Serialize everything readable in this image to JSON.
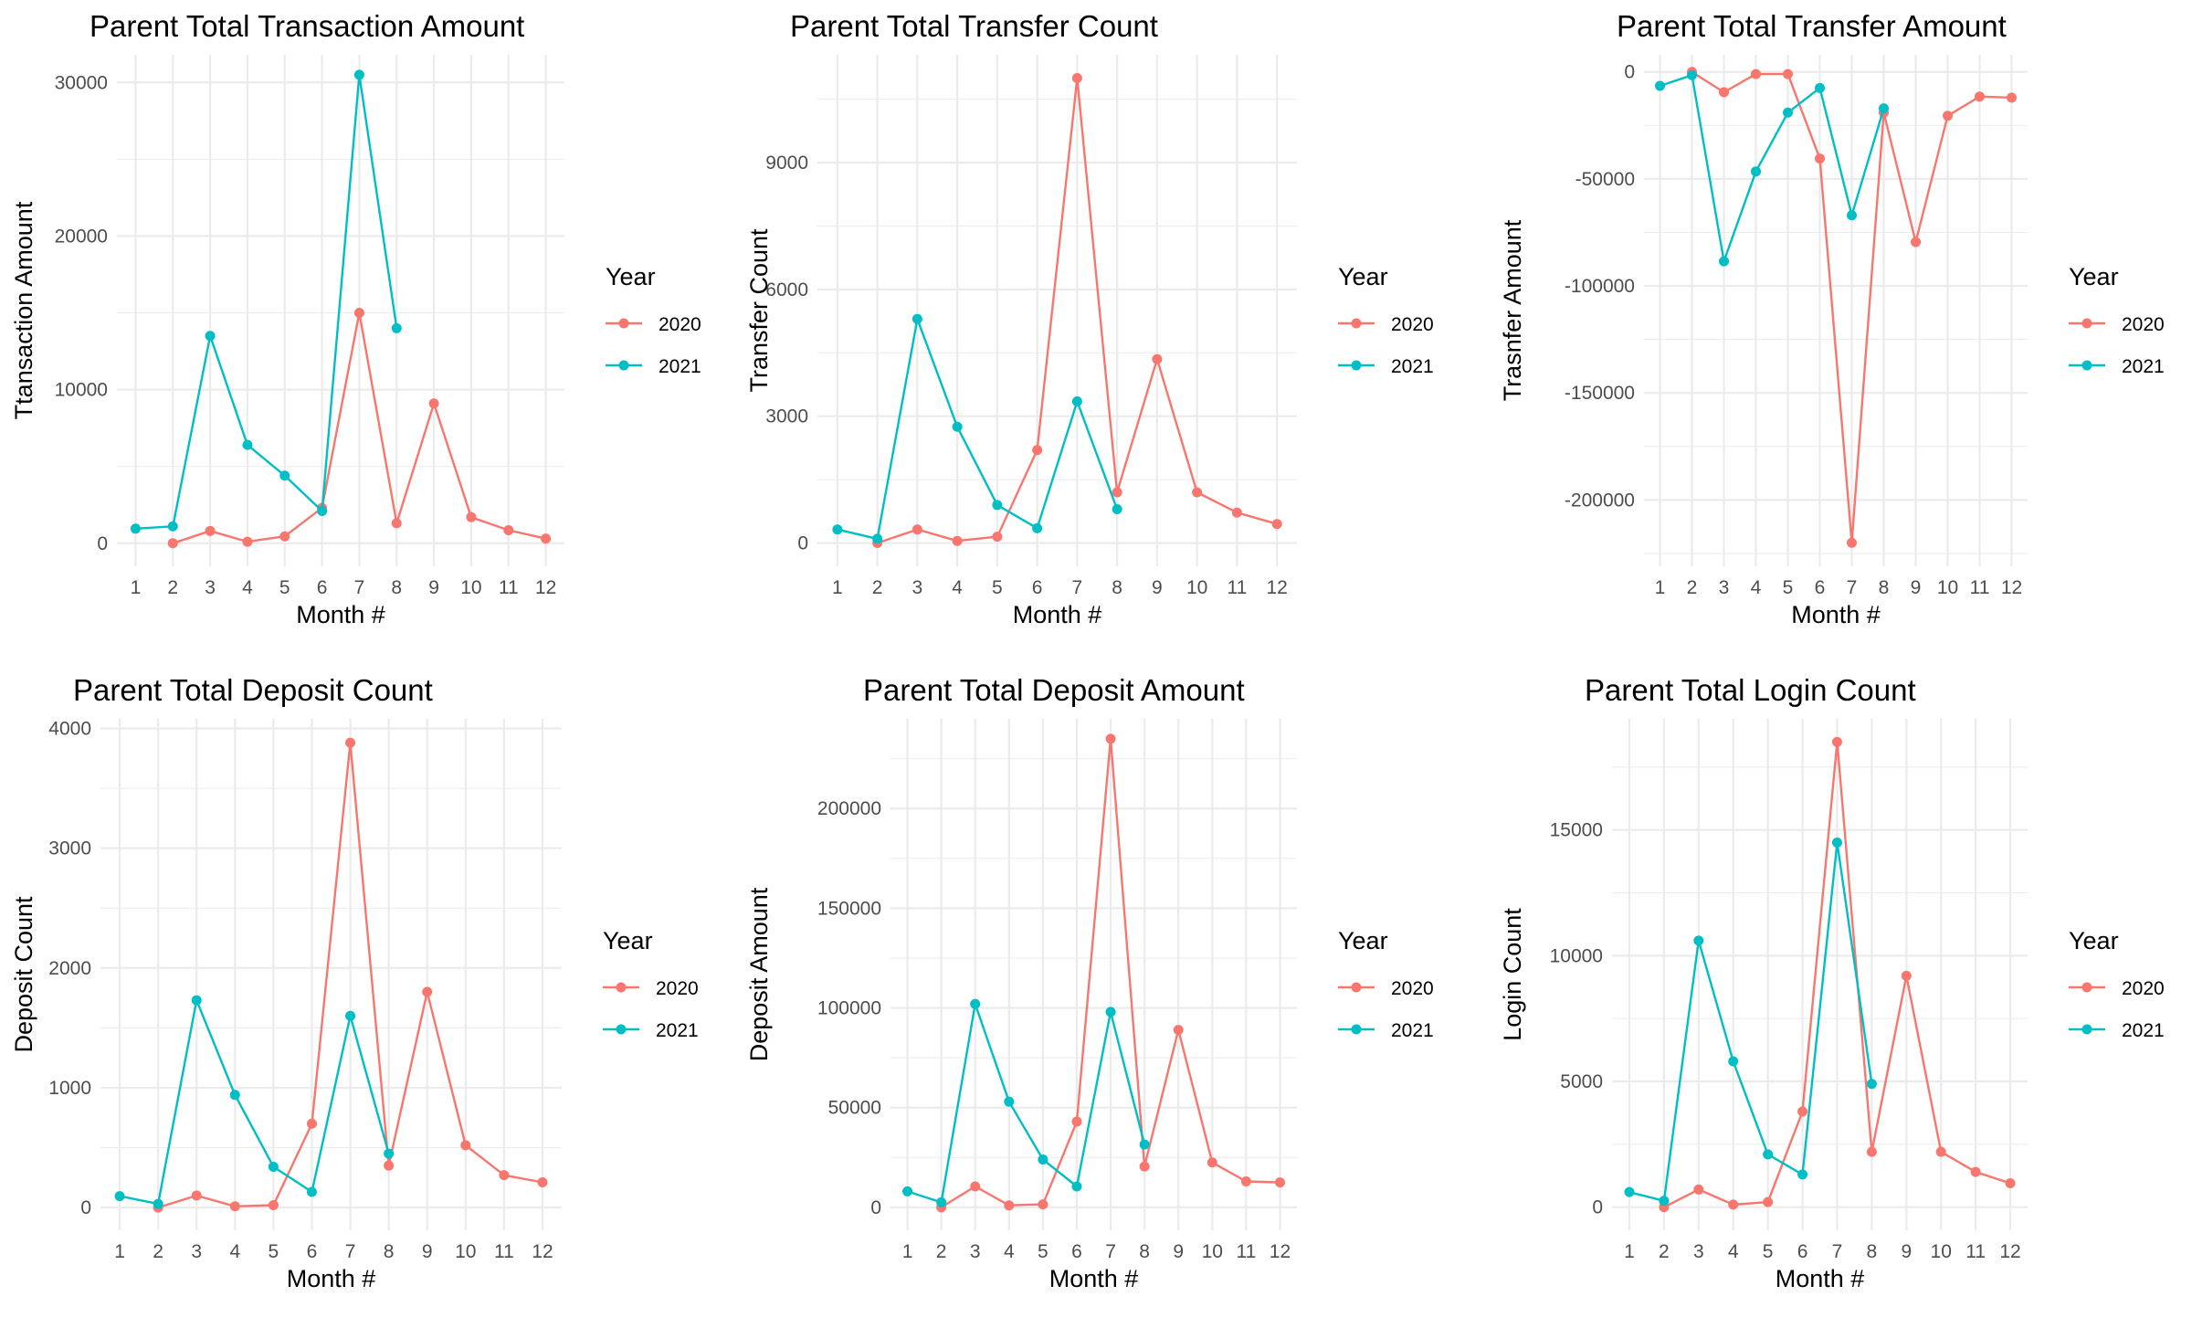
{
  "colors": {
    "y2020": "#F8766D",
    "y2021": "#00BFC4",
    "grid_major": "#EBEBEB",
    "tick_text": "#4D4D4D"
  },
  "chart_data": [
    {
      "type": "line",
      "title": "Parent Total Transaction Amount",
      "xlabel": "Month #",
      "ylabel": "Ttansaction Amount",
      "x": [
        1,
        2,
        3,
        4,
        5,
        6,
        7,
        8,
        9,
        10,
        11,
        12
      ],
      "xlim": [
        0.5,
        12.5
      ],
      "ylim": [
        -1500,
        31800
      ],
      "yticks": [
        0,
        10000,
        20000,
        30000
      ],
      "ytick_labels": [
        "0",
        "10000",
        "20000",
        "30000"
      ],
      "legend": {
        "title": "Year",
        "position": "right"
      },
      "series": [
        {
          "name": "2020",
          "color": "#F8766D",
          "x": [
            2,
            3,
            4,
            5,
            6,
            7,
            8,
            9,
            10,
            11,
            12
          ],
          "values": [
            0,
            800,
            100,
            450,
            2300,
            15000,
            1300,
            9100,
            1700,
            850,
            300
          ]
        },
        {
          "name": "2021",
          "color": "#00BFC4",
          "x": [
            1,
            2,
            3,
            4,
            5,
            6,
            7,
            8
          ],
          "values": [
            950,
            1100,
            13500,
            6400,
            4400,
            2100,
            30500,
            14000
          ]
        }
      ]
    },
    {
      "type": "line",
      "title": "Parent Total Transfer Count",
      "xlabel": "Month #",
      "ylabel": "Transfer Count",
      "x": [
        1,
        2,
        3,
        4,
        5,
        6,
        7,
        8,
        9,
        10,
        11,
        12
      ],
      "xlim": [
        0.5,
        12.5
      ],
      "ylim": [
        -550,
        11550
      ],
      "yticks": [
        0,
        3000,
        6000,
        9000
      ],
      "ytick_labels": [
        "0",
        "3000",
        "6000",
        "9000"
      ],
      "legend": {
        "title": "Year",
        "position": "right"
      },
      "series": [
        {
          "name": "2020",
          "color": "#F8766D",
          "x": [
            2,
            3,
            4,
            5,
            6,
            7,
            8,
            9,
            10,
            11,
            12
          ],
          "values": [
            0,
            320,
            50,
            150,
            2200,
            11000,
            1200,
            4350,
            1200,
            720,
            450
          ]
        },
        {
          "name": "2021",
          "color": "#00BFC4",
          "x": [
            1,
            2,
            3,
            4,
            5,
            6,
            7,
            8
          ],
          "values": [
            320,
            100,
            5300,
            2750,
            900,
            350,
            3350,
            800
          ]
        }
      ]
    },
    {
      "type": "line",
      "title": "Parent Total Transfer Amount",
      "xlabel": "Month #",
      "ylabel": "Trasnfer Amount",
      "x": [
        1,
        2,
        3,
        4,
        5,
        6,
        7,
        8,
        9,
        10,
        11,
        12
      ],
      "xlim": [
        0.5,
        12.5
      ],
      "ylim": [
        -231000,
        8000
      ],
      "yticks": [
        -200000,
        -150000,
        -100000,
        -50000,
        0
      ],
      "ytick_labels": [
        "-200000",
        "-150000",
        "-100000",
        "-50000",
        "0"
      ],
      "legend": {
        "title": "Year",
        "position": "right"
      },
      "series": [
        {
          "name": "2020",
          "color": "#F8766D",
          "x": [
            2,
            3,
            4,
            5,
            6,
            7,
            8,
            9,
            10,
            11,
            12
          ],
          "values": [
            0,
            -9500,
            -1000,
            -1000,
            -40500,
            -220000,
            -19000,
            -79500,
            -20500,
            -11500,
            -12000
          ]
        },
        {
          "name": "2021",
          "color": "#00BFC4",
          "x": [
            1,
            2,
            3,
            4,
            5,
            6,
            7,
            8
          ],
          "values": [
            -6500,
            -1500,
            -88500,
            -46500,
            -19000,
            -7500,
            -67000,
            -17000
          ]
        }
      ]
    },
    {
      "type": "line",
      "title": "Parent Total Deposit Count",
      "xlabel": "Month #",
      "ylabel": "Deposit Count",
      "x": [
        1,
        2,
        3,
        4,
        5,
        6,
        7,
        8,
        9,
        10,
        11,
        12
      ],
      "xlim": [
        0.5,
        12.5
      ],
      "ylim": [
        -190,
        4080
      ],
      "yticks": [
        0,
        1000,
        2000,
        3000,
        4000
      ],
      "ytick_labels": [
        "0",
        "1000",
        "2000",
        "3000",
        "4000"
      ],
      "legend": {
        "title": "Year",
        "position": "right"
      },
      "series": [
        {
          "name": "2020",
          "color": "#F8766D",
          "x": [
            2,
            3,
            4,
            5,
            6,
            7,
            8,
            9,
            10,
            11,
            12
          ],
          "values": [
            0,
            100,
            10,
            20,
            700,
            3880,
            350,
            1800,
            520,
            270,
            210
          ]
        },
        {
          "name": "2021",
          "color": "#00BFC4",
          "x": [
            1,
            2,
            3,
            4,
            5,
            6,
            7,
            8
          ],
          "values": [
            95,
            30,
            1730,
            940,
            340,
            130,
            1600,
            450
          ]
        }
      ]
    },
    {
      "type": "line",
      "title": "Parent Total Deposit Amount",
      "xlabel": "Month #",
      "ylabel": "Deposit Amount",
      "x": [
        1,
        2,
        3,
        4,
        5,
        6,
        7,
        8,
        9,
        10,
        11,
        12
      ],
      "xlim": [
        0.5,
        12.5
      ],
      "ylim": [
        -11500,
        245000
      ],
      "yticks": [
        0,
        50000,
        100000,
        150000,
        200000
      ],
      "ytick_labels": [
        "0",
        "50000",
        "100000",
        "150000",
        "200000"
      ],
      "legend": {
        "title": "Year",
        "position": "right"
      },
      "series": [
        {
          "name": "2020",
          "color": "#F8766D",
          "x": [
            2,
            3,
            4,
            5,
            6,
            7,
            8,
            9,
            10,
            11,
            12
          ],
          "values": [
            0,
            10500,
            1000,
            1500,
            43000,
            235000,
            20500,
            89000,
            22500,
            13000,
            12500
          ]
        },
        {
          "name": "2021",
          "color": "#00BFC4",
          "x": [
            1,
            2,
            3,
            4,
            5,
            6,
            7,
            8
          ],
          "values": [
            8000,
            2500,
            102000,
            53000,
            24000,
            10500,
            98000,
            31500
          ]
        }
      ]
    },
    {
      "type": "line",
      "title": "Parent Total Login Count",
      "xlabel": "Month #",
      "ylabel": "Login Count",
      "x": [
        1,
        2,
        3,
        4,
        5,
        6,
        7,
        8,
        9,
        10,
        11,
        12
      ],
      "xlim": [
        0.5,
        12.5
      ],
      "ylim": [
        -920,
        19420
      ],
      "yticks": [
        0,
        5000,
        10000,
        15000
      ],
      "ytick_labels": [
        "0",
        "5000",
        "10000",
        "15000"
      ],
      "legend": {
        "title": "Year",
        "position": "right"
      },
      "series": [
        {
          "name": "2020",
          "color": "#F8766D",
          "x": [
            2,
            3,
            4,
            5,
            6,
            7,
            8,
            9,
            10,
            11,
            12
          ],
          "values": [
            0,
            700,
            100,
            200,
            3800,
            18500,
            2200,
            9200,
            2200,
            1400,
            950
          ]
        },
        {
          "name": "2021",
          "color": "#00BFC4",
          "x": [
            1,
            2,
            3,
            4,
            5,
            6,
            7,
            8
          ],
          "values": [
            600,
            250,
            10600,
            5800,
            2100,
            1300,
            14500,
            4900
          ]
        }
      ]
    }
  ]
}
